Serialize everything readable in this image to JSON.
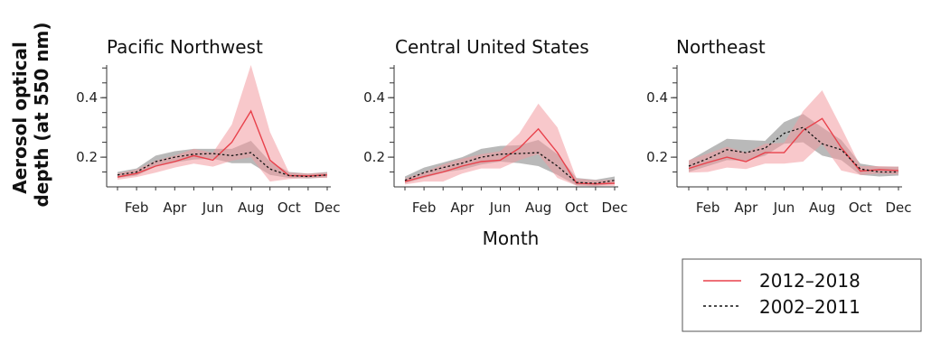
{
  "colors": {
    "recent_line": "#e8414b",
    "recent_band": "#f29aa0",
    "past_line": "#111111",
    "past_band": "#8a8a8a"
  },
  "chart_data": {
    "type": "line",
    "ylabel": "Aerosol optical depth (at 550 nm)",
    "ylabel_lines": [
      "Aerosol optical",
      "depth (at 550 nm)"
    ],
    "xlabel": "Month",
    "x": [
      1,
      2,
      3,
      4,
      5,
      6,
      7,
      8,
      9,
      10,
      11,
      12
    ],
    "x_ticks": [
      2,
      4,
      6,
      8,
      10,
      12
    ],
    "x_tick_labels": [
      "Feb",
      "Apr",
      "Jun",
      "Aug",
      "Oct",
      "Dec"
    ],
    "y_ticks": [
      0.2,
      0.4
    ],
    "y_tick_labels": [
      "0.2",
      "0.4"
    ],
    "ylim": [
      0.1,
      0.51
    ],
    "legend": {
      "placement": "bottom-right",
      "entries": [
        "2012–2018",
        "2002–2011"
      ]
    },
    "panels": [
      {
        "title": "Pacific Northwest",
        "series": [
          {
            "name": "2012–2018",
            "style": "solid",
            "values": [
              0.133,
              0.145,
              0.17,
              0.185,
              0.205,
              0.19,
              0.25,
              0.355,
              0.19,
              0.138,
              0.137,
              0.14
            ],
            "band_low": [
              0.124,
              0.133,
              0.148,
              0.165,
              0.178,
              0.168,
              0.188,
              0.2,
              0.118,
              0.126,
              0.13,
              0.13
            ],
            "band_high": [
              0.145,
              0.158,
              0.188,
              0.205,
              0.228,
              0.215,
              0.31,
              0.51,
              0.285,
              0.148,
              0.145,
              0.148
            ]
          },
          {
            "name": "2002–2011",
            "style": "dashed",
            "values": [
              0.14,
              0.15,
              0.185,
              0.2,
              0.21,
              0.212,
              0.205,
              0.215,
              0.16,
              0.138,
              0.135,
              0.14
            ],
            "band_low": [
              0.13,
              0.138,
              0.168,
              0.182,
              0.192,
              0.195,
              0.18,
              0.18,
              0.14,
              0.13,
              0.128,
              0.132
            ],
            "band_high": [
              0.15,
              0.162,
              0.205,
              0.22,
              0.228,
              0.228,
              0.228,
              0.255,
              0.185,
              0.15,
              0.145,
              0.15
            ]
          }
        ]
      },
      {
        "title": "Central United States",
        "series": [
          {
            "name": "2012–2018",
            "style": "solid",
            "values": [
              0.118,
              0.135,
              0.15,
              0.17,
              0.185,
              0.19,
              0.23,
              0.295,
              0.215,
              0.112,
              0.11,
              0.112
            ],
            "band_low": [
              0.108,
              0.118,
              0.118,
              0.145,
              0.162,
              0.162,
              0.19,
              0.21,
              0.13,
              0.104,
              0.102,
              0.104
            ],
            "band_high": [
              0.128,
              0.15,
              0.175,
              0.195,
              0.21,
              0.22,
              0.28,
              0.38,
              0.3,
              0.128,
              0.122,
              0.124
            ]
          },
          {
            "name": "2002–2011",
            "style": "dashed",
            "values": [
              0.122,
              0.148,
              0.165,
              0.18,
              0.2,
              0.21,
              0.212,
              0.215,
              0.17,
              0.115,
              0.112,
              0.122
            ],
            "band_low": [
              0.112,
              0.13,
              0.148,
              0.158,
              0.175,
              0.185,
              0.18,
              0.17,
              0.14,
              0.105,
              0.104,
              0.11
            ],
            "band_high": [
              0.135,
              0.165,
              0.182,
              0.2,
              0.228,
              0.238,
              0.24,
              0.258,
              0.21,
              0.13,
              0.124,
              0.135
            ]
          }
        ]
      },
      {
        "title": "Northeast",
        "series": [
          {
            "name": "2012–2018",
            "style": "solid",
            "values": [
              0.162,
              0.182,
              0.2,
              0.185,
              0.215,
              0.215,
              0.29,
              0.33,
              0.232,
              0.153,
              0.158,
              0.155
            ],
            "band_low": [
              0.148,
              0.15,
              0.165,
              0.16,
              0.178,
              0.178,
              0.185,
              0.245,
              0.155,
              0.14,
              0.145,
              0.142
            ],
            "band_high": [
              0.19,
              0.212,
              0.235,
              0.215,
              0.245,
              0.248,
              0.355,
              0.425,
              0.3,
              0.17,
              0.17,
              0.168
            ]
          },
          {
            "name": "2002–2011",
            "style": "dashed",
            "values": [
              0.17,
              0.195,
              0.225,
              0.215,
              0.23,
              0.28,
              0.3,
              0.245,
              0.225,
              0.16,
              0.15,
              0.15
            ],
            "band_low": [
              0.15,
              0.17,
              0.19,
              0.188,
              0.205,
              0.245,
              0.25,
              0.205,
              0.19,
              0.14,
              0.135,
              0.138
            ],
            "band_high": [
              0.188,
              0.225,
              0.262,
              0.258,
              0.255,
              0.318,
              0.345,
              0.3,
              0.258,
              0.178,
              0.168,
              0.168
            ]
          }
        ]
      }
    ]
  }
}
